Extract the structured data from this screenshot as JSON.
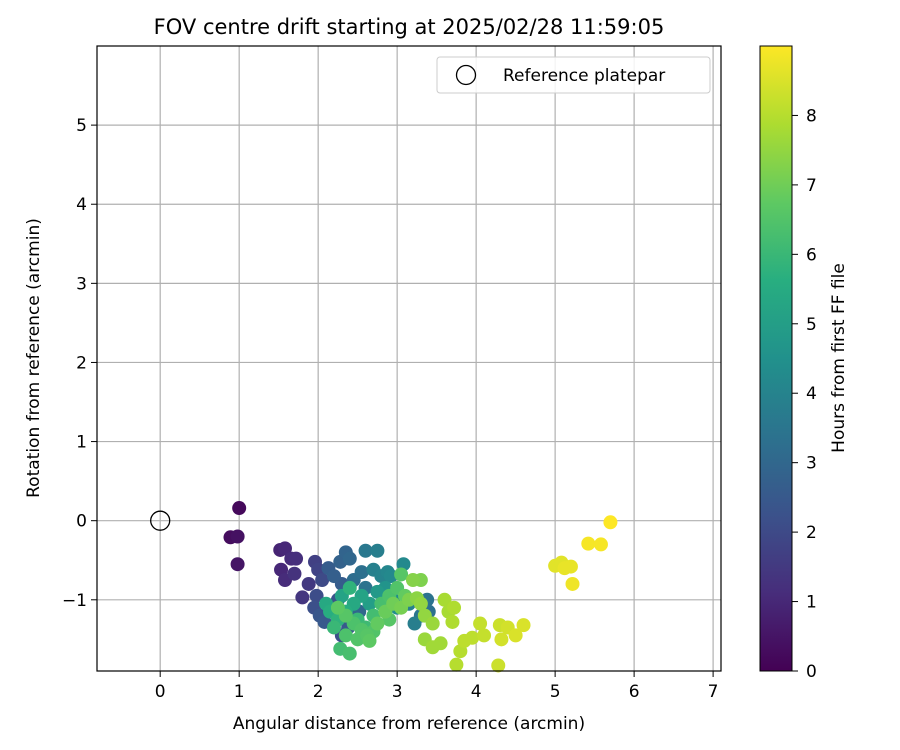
{
  "chart_data": {
    "type": "scatter",
    "title": "FOV centre drift starting at 2025/02/28 11:59:05",
    "xlabel": "Angular distance from reference (arcmin)",
    "ylabel": "Rotation from reference (arcmin)",
    "xlim": [
      -0.8,
      7.1
    ],
    "ylim": [
      -1.9,
      6.0
    ],
    "xticks": [
      0,
      1,
      2,
      3,
      4,
      5,
      6,
      7
    ],
    "yticks": [
      -1,
      0,
      1,
      2,
      3,
      4,
      5
    ],
    "grid": true,
    "legend": {
      "position": "top-right",
      "label": "Reference platepar"
    },
    "reference_point": {
      "x": 0,
      "y": 0
    },
    "colorbar": {
      "label": "Hours from first FF file",
      "colormap": "viridis",
      "range": [
        0,
        9
      ],
      "ticks": [
        0,
        1,
        2,
        3,
        4,
        5,
        6,
        7,
        8
      ]
    },
    "points": [
      {
        "x": 1.0,
        "y": 0.16,
        "h": 0.2
      },
      {
        "x": 0.89,
        "y": -0.21,
        "h": 0.3
      },
      {
        "x": 0.98,
        "y": -0.2,
        "h": 0.4
      },
      {
        "x": 0.98,
        "y": -0.55,
        "h": 0.5
      },
      {
        "x": 1.52,
        "y": -0.37,
        "h": 0.9
      },
      {
        "x": 1.58,
        "y": -0.35,
        "h": 1.0
      },
      {
        "x": 1.66,
        "y": -0.48,
        "h": 1.1
      },
      {
        "x": 1.72,
        "y": -0.48,
        "h": 1.2
      },
      {
        "x": 1.53,
        "y": -0.62,
        "h": 1.0
      },
      {
        "x": 1.58,
        "y": -0.75,
        "h": 1.1
      },
      {
        "x": 1.7,
        "y": -0.67,
        "h": 1.3
      },
      {
        "x": 1.8,
        "y": -0.97,
        "h": 1.4
      },
      {
        "x": 1.88,
        "y": -0.8,
        "h": 1.5
      },
      {
        "x": 1.96,
        "y": -0.52,
        "h": 1.7
      },
      {
        "x": 2.0,
        "y": -0.62,
        "h": 1.8
      },
      {
        "x": 2.05,
        "y": -0.75,
        "h": 2.0
      },
      {
        "x": 1.98,
        "y": -0.95,
        "h": 2.1
      },
      {
        "x": 1.95,
        "y": -1.1,
        "h": 2.2
      },
      {
        "x": 2.02,
        "y": -1.2,
        "h": 2.4
      },
      {
        "x": 2.08,
        "y": -1.28,
        "h": 2.5
      },
      {
        "x": 2.13,
        "y": -0.6,
        "h": 2.6
      },
      {
        "x": 2.2,
        "y": -0.7,
        "h": 2.7
      },
      {
        "x": 2.28,
        "y": -0.52,
        "h": 2.8
      },
      {
        "x": 2.35,
        "y": -0.4,
        "h": 2.9
      },
      {
        "x": 2.4,
        "y": -0.48,
        "h": 3.0
      },
      {
        "x": 2.3,
        "y": -0.8,
        "h": 2.6
      },
      {
        "x": 2.25,
        "y": -1.0,
        "h": 2.3
      },
      {
        "x": 2.3,
        "y": -1.45,
        "h": 2.2
      },
      {
        "x": 2.38,
        "y": -1.35,
        "h": 2.5
      },
      {
        "x": 2.45,
        "y": -1.25,
        "h": 2.8
      },
      {
        "x": 2.52,
        "y": -1.15,
        "h": 3.0
      },
      {
        "x": 2.45,
        "y": -0.75,
        "h": 3.2
      },
      {
        "x": 2.55,
        "y": -0.65,
        "h": 3.3
      },
      {
        "x": 2.6,
        "y": -0.85,
        "h": 3.4
      },
      {
        "x": 2.6,
        "y": -0.38,
        "h": 3.6
      },
      {
        "x": 2.75,
        "y": -0.38,
        "h": 3.8
      },
      {
        "x": 2.7,
        "y": -0.62,
        "h": 3.9
      },
      {
        "x": 2.8,
        "y": -0.7,
        "h": 4.0
      },
      {
        "x": 2.88,
        "y": -0.65,
        "h": 4.1
      },
      {
        "x": 2.92,
        "y": -0.7,
        "h": 4.2
      },
      {
        "x": 2.95,
        "y": -1.0,
        "h": 4.3
      },
      {
        "x": 3.0,
        "y": -1.1,
        "h": 4.4
      },
      {
        "x": 3.08,
        "y": -0.55,
        "h": 4.2
      },
      {
        "x": 3.15,
        "y": -1.05,
        "h": 3.9
      },
      {
        "x": 3.22,
        "y": -1.3,
        "h": 3.8
      },
      {
        "x": 3.3,
        "y": -1.2,
        "h": 3.5
      },
      {
        "x": 3.38,
        "y": -1.0,
        "h": 3.4
      },
      {
        "x": 3.4,
        "y": -1.15,
        "h": 3.3
      },
      {
        "x": 2.85,
        "y": -0.85,
        "h": 4.6
      },
      {
        "x": 2.75,
        "y": -0.9,
        "h": 4.8
      },
      {
        "x": 2.65,
        "y": -1.05,
        "h": 5.0
      },
      {
        "x": 2.55,
        "y": -0.95,
        "h": 5.2
      },
      {
        "x": 2.45,
        "y": -1.05,
        "h": 5.4
      },
      {
        "x": 2.35,
        "y": -1.15,
        "h": 5.6
      },
      {
        "x": 2.25,
        "y": -1.25,
        "h": 5.8
      },
      {
        "x": 2.15,
        "y": -1.15,
        "h": 5.6
      },
      {
        "x": 2.1,
        "y": -1.05,
        "h": 5.4
      },
      {
        "x": 2.3,
        "y": -0.95,
        "h": 5.2
      },
      {
        "x": 2.4,
        "y": -0.85,
        "h": 5.8
      },
      {
        "x": 2.5,
        "y": -1.25,
        "h": 6.0
      },
      {
        "x": 2.6,
        "y": -1.35,
        "h": 6.1
      },
      {
        "x": 2.7,
        "y": -1.2,
        "h": 6.2
      },
      {
        "x": 2.8,
        "y": -1.05,
        "h": 6.3
      },
      {
        "x": 2.9,
        "y": -0.95,
        "h": 6.4
      },
      {
        "x": 3.0,
        "y": -0.85,
        "h": 6.5
      },
      {
        "x": 3.05,
        "y": -0.68,
        "h": 6.6
      },
      {
        "x": 2.2,
        "y": -1.35,
        "h": 6.0
      },
      {
        "x": 2.28,
        "y": -1.62,
        "h": 6.2
      },
      {
        "x": 2.4,
        "y": -1.68,
        "h": 6.3
      },
      {
        "x": 2.35,
        "y": -1.45,
        "h": 6.4
      },
      {
        "x": 2.5,
        "y": -1.5,
        "h": 6.5
      },
      {
        "x": 2.62,
        "y": -1.45,
        "h": 6.6
      },
      {
        "x": 2.65,
        "y": -1.52,
        "h": 6.7
      },
      {
        "x": 2.55,
        "y": -1.38,
        "h": 6.5
      },
      {
        "x": 2.45,
        "y": -1.3,
        "h": 6.4
      },
      {
        "x": 2.35,
        "y": -1.2,
        "h": 6.6
      },
      {
        "x": 2.25,
        "y": -1.1,
        "h": 6.7
      },
      {
        "x": 2.75,
        "y": -1.3,
        "h": 6.8
      },
      {
        "x": 2.85,
        "y": -1.15,
        "h": 6.9
      },
      {
        "x": 2.95,
        "y": -1.05,
        "h": 7.0
      },
      {
        "x": 3.05,
        "y": -1.1,
        "h": 7.1
      },
      {
        "x": 3.15,
        "y": -1.0,
        "h": 7.2
      },
      {
        "x": 3.2,
        "y": -0.75,
        "h": 7.3
      },
      {
        "x": 3.25,
        "y": -0.98,
        "h": 7.4
      },
      {
        "x": 3.3,
        "y": -1.05,
        "h": 7.5
      },
      {
        "x": 3.35,
        "y": -1.2,
        "h": 7.5
      },
      {
        "x": 3.45,
        "y": -1.3,
        "h": 7.6
      },
      {
        "x": 3.35,
        "y": -1.5,
        "h": 7.6
      },
      {
        "x": 3.45,
        "y": -1.6,
        "h": 7.7
      },
      {
        "x": 3.55,
        "y": -1.55,
        "h": 7.7
      },
      {
        "x": 3.6,
        "y": -1.0,
        "h": 7.8
      },
      {
        "x": 3.65,
        "y": -1.15,
        "h": 7.8
      },
      {
        "x": 3.7,
        "y": -1.28,
        "h": 7.9
      },
      {
        "x": 3.72,
        "y": -1.1,
        "h": 7.9
      },
      {
        "x": 3.75,
        "y": -1.82,
        "h": 8.0
      },
      {
        "x": 3.8,
        "y": -1.65,
        "h": 8.0
      },
      {
        "x": 3.85,
        "y": -1.52,
        "h": 8.1
      },
      {
        "x": 3.95,
        "y": -1.48,
        "h": 8.1
      },
      {
        "x": 4.05,
        "y": -1.3,
        "h": 8.2
      },
      {
        "x": 4.1,
        "y": -1.45,
        "h": 8.2
      },
      {
        "x": 4.28,
        "y": -1.83,
        "h": 8.3
      },
      {
        "x": 4.3,
        "y": -1.32,
        "h": 8.3
      },
      {
        "x": 4.32,
        "y": -1.5,
        "h": 8.4
      },
      {
        "x": 4.4,
        "y": -1.35,
        "h": 8.4
      },
      {
        "x": 4.5,
        "y": -1.45,
        "h": 8.5
      },
      {
        "x": 4.6,
        "y": -1.32,
        "h": 8.5
      },
      {
        "x": 5.0,
        "y": -0.57,
        "h": 8.6
      },
      {
        "x": 5.08,
        "y": -0.53,
        "h": 8.6
      },
      {
        "x": 5.12,
        "y": -0.6,
        "h": 8.7
      },
      {
        "x": 5.2,
        "y": -0.58,
        "h": 8.7
      },
      {
        "x": 5.22,
        "y": -0.8,
        "h": 8.8
      },
      {
        "x": 5.42,
        "y": -0.29,
        "h": 8.9
      },
      {
        "x": 5.58,
        "y": -0.3,
        "h": 8.9
      },
      {
        "x": 5.7,
        "y": -0.02,
        "h": 9.0
      },
      {
        "x": 3.3,
        "y": -0.75,
        "h": 7.2
      },
      {
        "x": 3.1,
        "y": -0.95,
        "h": 6.8
      },
      {
        "x": 2.9,
        "y": -1.25,
        "h": 6.6
      },
      {
        "x": 2.7,
        "y": -1.4,
        "h": 6.5
      }
    ]
  }
}
